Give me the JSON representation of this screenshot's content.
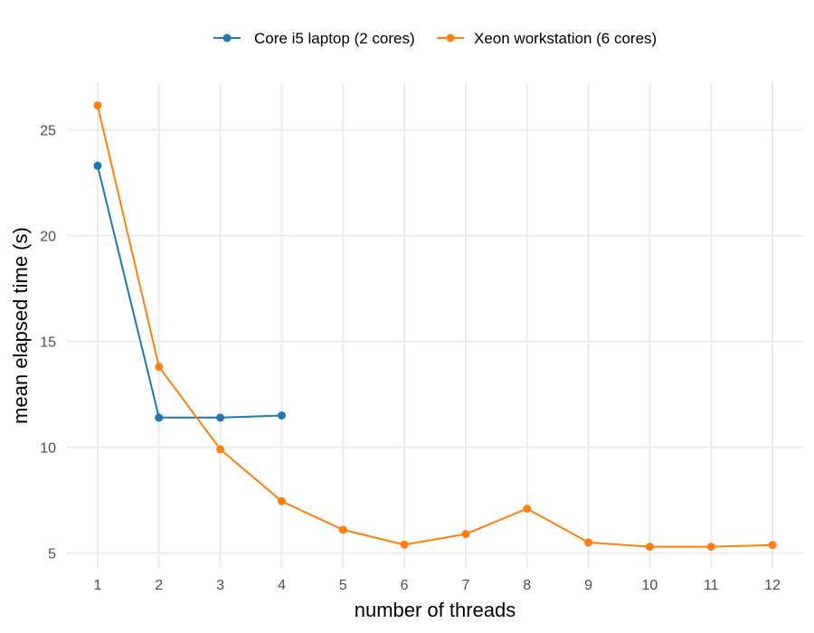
{
  "chart_data": {
    "type": "line",
    "xlabel": "number of threads",
    "ylabel": "mean elapsed time (s)",
    "xlim": [
      0.5,
      12.5
    ],
    "ylim": [
      4.3,
      27.2
    ],
    "x_ticks": [
      1,
      2,
      3,
      4,
      5,
      6,
      7,
      8,
      9,
      10,
      11,
      12
    ],
    "y_ticks": [
      5,
      10,
      15,
      20,
      25
    ],
    "grid": true,
    "legend_position": "top",
    "series": [
      {
        "name": "Core i5 laptop (2 cores)",
        "color": "#1f77b4",
        "x": [
          1,
          2,
          3,
          4
        ],
        "y": [
          23.3,
          11.4,
          11.4,
          11.5
        ]
      },
      {
        "name": "Xeon workstation (6 cores)",
        "color": "#ff7f0e",
        "x": [
          1,
          2,
          3,
          4,
          5,
          6,
          7,
          8,
          9,
          10,
          11,
          12
        ],
        "y": [
          26.15,
          13.8,
          9.9,
          7.45,
          6.1,
          5.4,
          5.9,
          7.1,
          5.5,
          5.3,
          5.3,
          5.38
        ]
      }
    ]
  }
}
